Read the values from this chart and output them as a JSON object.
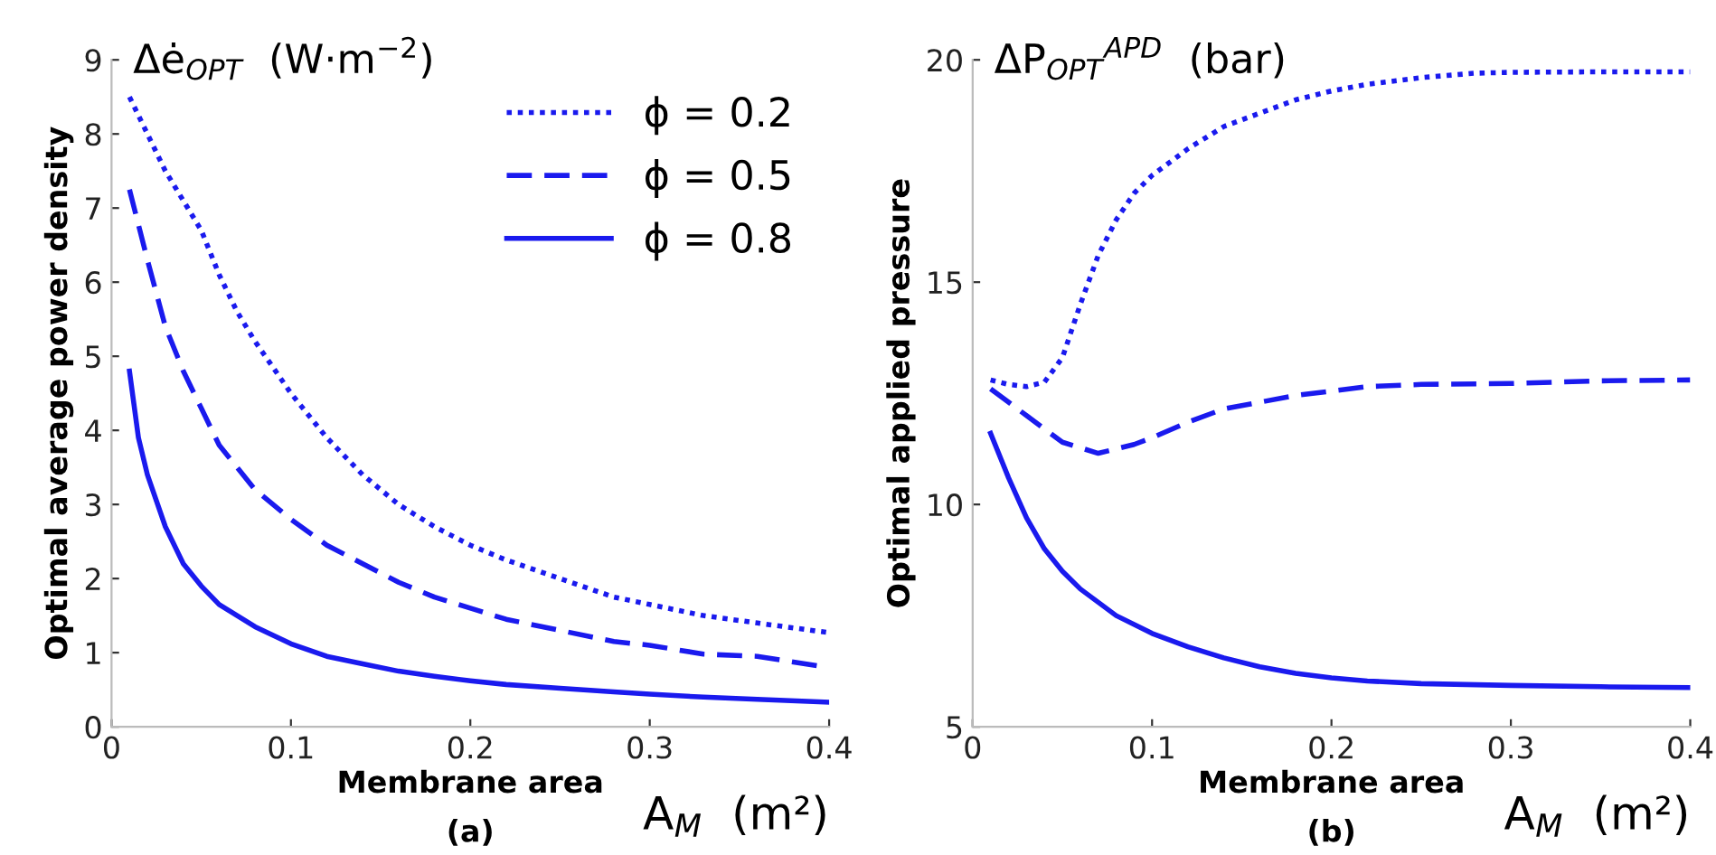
{
  "chart_data": [
    {
      "type": "line",
      "xlabel": "Membrane area",
      "ylabel": "Optimal average power density",
      "annotations": [
        "Δė$_{OPT}$  (W·m$^{−2}$)",
        "A$_{M}$  (m²)",
        "(a)"
      ],
      "xlim": [
        0,
        0.4
      ],
      "ylim": [
        0,
        9
      ],
      "xticks": [
        0,
        0.1,
        0.2,
        0.3,
        0.4
      ],
      "yticks": [
        0,
        1,
        2,
        3,
        4,
        5,
        6,
        7,
        8,
        9
      ],
      "grid": false,
      "legend": "top right",
      "series": [
        {
          "name": "ϕ = 0.2",
          "color": "#1a1aee",
          "line_style": "dotted",
          "x": [
            0.01,
            0.02,
            0.03,
            0.04,
            0.05,
            0.06,
            0.07,
            0.08,
            0.1,
            0.12,
            0.14,
            0.16,
            0.18,
            0.2,
            0.22,
            0.25,
            0.28,
            0.3,
            0.33,
            0.36,
            0.4
          ],
          "values": [
            8.5,
            8.0,
            7.5,
            7.1,
            6.7,
            6.1,
            5.6,
            5.2,
            4.5,
            3.9,
            3.4,
            3.0,
            2.7,
            2.45,
            2.25,
            2.0,
            1.75,
            1.65,
            1.5,
            1.4,
            1.27
          ]
        },
        {
          "name": "ϕ = 0.5",
          "color": "#1a1aee",
          "line_style": "dashed",
          "x": [
            0.01,
            0.02,
            0.03,
            0.04,
            0.05,
            0.06,
            0.07,
            0.08,
            0.1,
            0.12,
            0.14,
            0.16,
            0.18,
            0.2,
            0.22,
            0.25,
            0.28,
            0.3,
            0.33,
            0.36,
            0.4
          ],
          "values": [
            7.25,
            6.3,
            5.4,
            4.8,
            4.3,
            3.8,
            3.5,
            3.2,
            2.8,
            2.45,
            2.2,
            1.95,
            1.75,
            1.6,
            1.45,
            1.3,
            1.15,
            1.1,
            0.98,
            0.95,
            0.8
          ]
        },
        {
          "name": "ϕ = 0.8",
          "color": "#1a1aee",
          "line_style": "solid",
          "x": [
            0.01,
            0.015,
            0.02,
            0.03,
            0.04,
            0.05,
            0.06,
            0.07,
            0.08,
            0.1,
            0.12,
            0.14,
            0.16,
            0.18,
            0.2,
            0.22,
            0.25,
            0.28,
            0.3,
            0.33,
            0.36,
            0.4
          ],
          "values": [
            4.8,
            3.9,
            3.4,
            2.7,
            2.2,
            1.9,
            1.65,
            1.5,
            1.35,
            1.12,
            0.95,
            0.85,
            0.75,
            0.68,
            0.62,
            0.57,
            0.52,
            0.47,
            0.44,
            0.4,
            0.37,
            0.33
          ]
        }
      ]
    },
    {
      "type": "line",
      "xlabel": "Membrane area",
      "ylabel": "Optimal applied pressure",
      "annotations": [
        "ΔP$_{OPT}$$^{APD}$  (bar)",
        "A$_{M}$  (m²)",
        "(b)"
      ],
      "xlim": [
        0,
        0.4
      ],
      "ylim": [
        5,
        20
      ],
      "xticks": [
        0,
        0.1,
        0.2,
        0.3,
        0.4
      ],
      "yticks": [
        5,
        10,
        15,
        20
      ],
      "grid": false,
      "series": [
        {
          "color": "#1a1aee",
          "line_style": "dotted",
          "x": [
            0.01,
            0.02,
            0.03,
            0.04,
            0.05,
            0.06,
            0.07,
            0.08,
            0.09,
            0.1,
            0.12,
            0.14,
            0.16,
            0.18,
            0.2,
            0.22,
            0.25,
            0.28,
            0.3,
            0.35,
            0.4
          ],
          "values": [
            12.8,
            12.7,
            12.65,
            12.75,
            13.3,
            14.5,
            15.6,
            16.4,
            17.0,
            17.4,
            18.0,
            18.5,
            18.8,
            19.1,
            19.3,
            19.45,
            19.6,
            19.7,
            19.72,
            19.73,
            19.73
          ]
        },
        {
          "color": "#1a1aee",
          "line_style": "dashed",
          "x": [
            0.01,
            0.03,
            0.05,
            0.07,
            0.09,
            0.1,
            0.12,
            0.14,
            0.16,
            0.18,
            0.2,
            0.22,
            0.25,
            0.3,
            0.35,
            0.4
          ],
          "values": [
            12.6,
            12.0,
            11.4,
            11.15,
            11.35,
            11.5,
            11.85,
            12.15,
            12.3,
            12.45,
            12.55,
            12.65,
            12.7,
            12.72,
            12.78,
            12.8
          ]
        },
        {
          "color": "#1a1aee",
          "line_style": "solid",
          "x": [
            0.01,
            0.02,
            0.03,
            0.04,
            0.05,
            0.06,
            0.07,
            0.08,
            0.1,
            0.12,
            0.14,
            0.16,
            0.18,
            0.2,
            0.22,
            0.25,
            0.3,
            0.35,
            0.4
          ],
          "values": [
            11.6,
            10.6,
            9.7,
            9.0,
            8.5,
            8.1,
            7.8,
            7.5,
            7.1,
            6.8,
            6.55,
            6.35,
            6.2,
            6.1,
            6.03,
            5.97,
            5.93,
            5.9,
            5.88
          ]
        }
      ]
    }
  ]
}
